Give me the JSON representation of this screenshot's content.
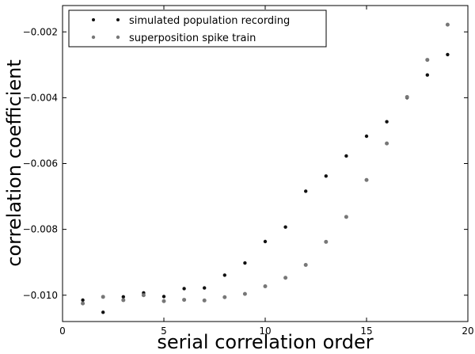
{
  "chart_data": {
    "type": "scatter",
    "title": "",
    "xlabel": "serial correlation order",
    "ylabel": "correlation coefficient",
    "xlim": [
      0,
      20
    ],
    "ylim": [
      -0.0108,
      -0.0012
    ],
    "xticks": [
      0,
      5,
      10,
      15,
      20
    ],
    "yticks": [
      -0.01,
      -0.008,
      -0.006,
      -0.004,
      -0.002
    ],
    "ytick_labels": [
      "−0.010",
      "−0.008",
      "−0.006",
      "−0.004",
      "−0.002"
    ],
    "grid": false,
    "legend": "top-left",
    "series": [
      {
        "name": "simulated population recording",
        "color": "#111111",
        "x": [
          1,
          2,
          3,
          4,
          5,
          6,
          7,
          8,
          9,
          10,
          11,
          12,
          13,
          14,
          15,
          16,
          17,
          18,
          19
        ],
        "y": [
          -0.01015,
          -0.01052,
          -0.01005,
          -0.00993,
          -0.01004,
          -0.0098,
          -0.00978,
          -0.00939,
          -0.00902,
          -0.00837,
          -0.00793,
          -0.00684,
          -0.00638,
          -0.00577,
          -0.00517,
          -0.00473,
          -0.004,
          -0.00331,
          -0.00269
        ]
      },
      {
        "name": "superposition spike train",
        "color": "#777777",
        "x": [
          1,
          2,
          3,
          4,
          5,
          6,
          7,
          8,
          9,
          10,
          11,
          12,
          13,
          14,
          15,
          16,
          17,
          18,
          19
        ],
        "y": [
          -0.01025,
          -0.01005,
          -0.01015,
          -0.01,
          -0.01018,
          -0.01014,
          -0.01016,
          -0.01006,
          -0.00996,
          -0.00973,
          -0.00947,
          -0.00908,
          -0.00838,
          -0.00762,
          -0.0065,
          -0.00539,
          -0.00398,
          -0.00285,
          -0.00178
        ]
      }
    ]
  }
}
